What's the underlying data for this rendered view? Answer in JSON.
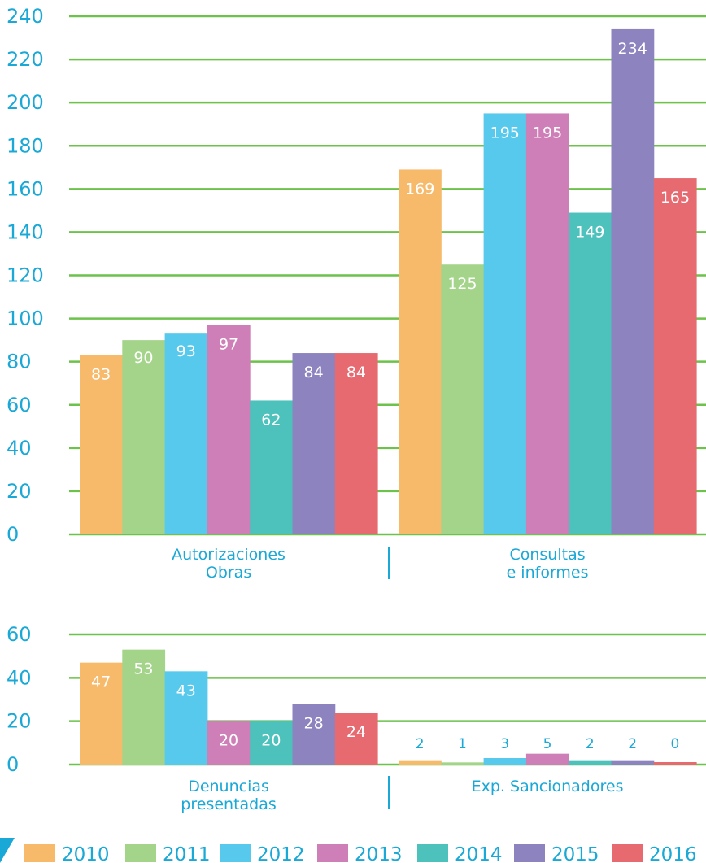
{
  "chart_data": [
    {
      "type": "bar",
      "categories": [
        "Autorizaciones\nObras",
        "Consultas\ne informes"
      ],
      "series": [
        {
          "name": "2010",
          "values": [
            83,
            169
          ]
        },
        {
          "name": "2011",
          "values": [
            90,
            125
          ]
        },
        {
          "name": "2012",
          "values": [
            93,
            195
          ]
        },
        {
          "name": "2013",
          "values": [
            97,
            195
          ]
        },
        {
          "name": "2014",
          "values": [
            62,
            149
          ]
        },
        {
          "name": "2015",
          "values": [
            84,
            234
          ]
        },
        {
          "name": "2016",
          "values": [
            84,
            165
          ]
        }
      ],
      "yticks": [
        "0",
        "20",
        "40",
        "60",
        "80",
        "100",
        "120",
        "140",
        "160",
        "180",
        "200",
        "220",
        "240"
      ],
      "ylim": [
        0,
        240
      ],
      "grid": true
    },
    {
      "type": "bar",
      "categories": [
        "Denuncias\npresentadas",
        "Exp. Sancionadores"
      ],
      "series": [
        {
          "name": "2010",
          "values": [
            47,
            2
          ]
        },
        {
          "name": "2011",
          "values": [
            53,
            1
          ]
        },
        {
          "name": "2012",
          "values": [
            43,
            3
          ]
        },
        {
          "name": "2013",
          "values": [
            20,
            5
          ]
        },
        {
          "name": "2014",
          "values": [
            20,
            2
          ]
        },
        {
          "name": "2015",
          "values": [
            28,
            2
          ]
        },
        {
          "name": "2016",
          "values": [
            24,
            0
          ]
        }
      ],
      "yticks": [
        "0",
        "20",
        "40",
        "60"
      ],
      "ylim": [
        0,
        60
      ],
      "grid": true
    }
  ],
  "legend": {
    "placement": "bottom",
    "items": [
      {
        "label": "2010",
        "color": "#f7b96a"
      },
      {
        "label": "2011",
        "color": "#a3d48a"
      },
      {
        "label": "2012",
        "color": "#57c9ec"
      },
      {
        "label": "2013",
        "color": "#cf7fb7"
      },
      {
        "label": "2014",
        "color": "#4dc2bc"
      },
      {
        "label": "2015",
        "color": "#8c83bf"
      },
      {
        "label": "2016",
        "color": "#e66a70"
      }
    ]
  },
  "colors": {
    "gridline": "#6cc24a",
    "text": "#1aa8d6",
    "divider": "#1aa8d6"
  }
}
